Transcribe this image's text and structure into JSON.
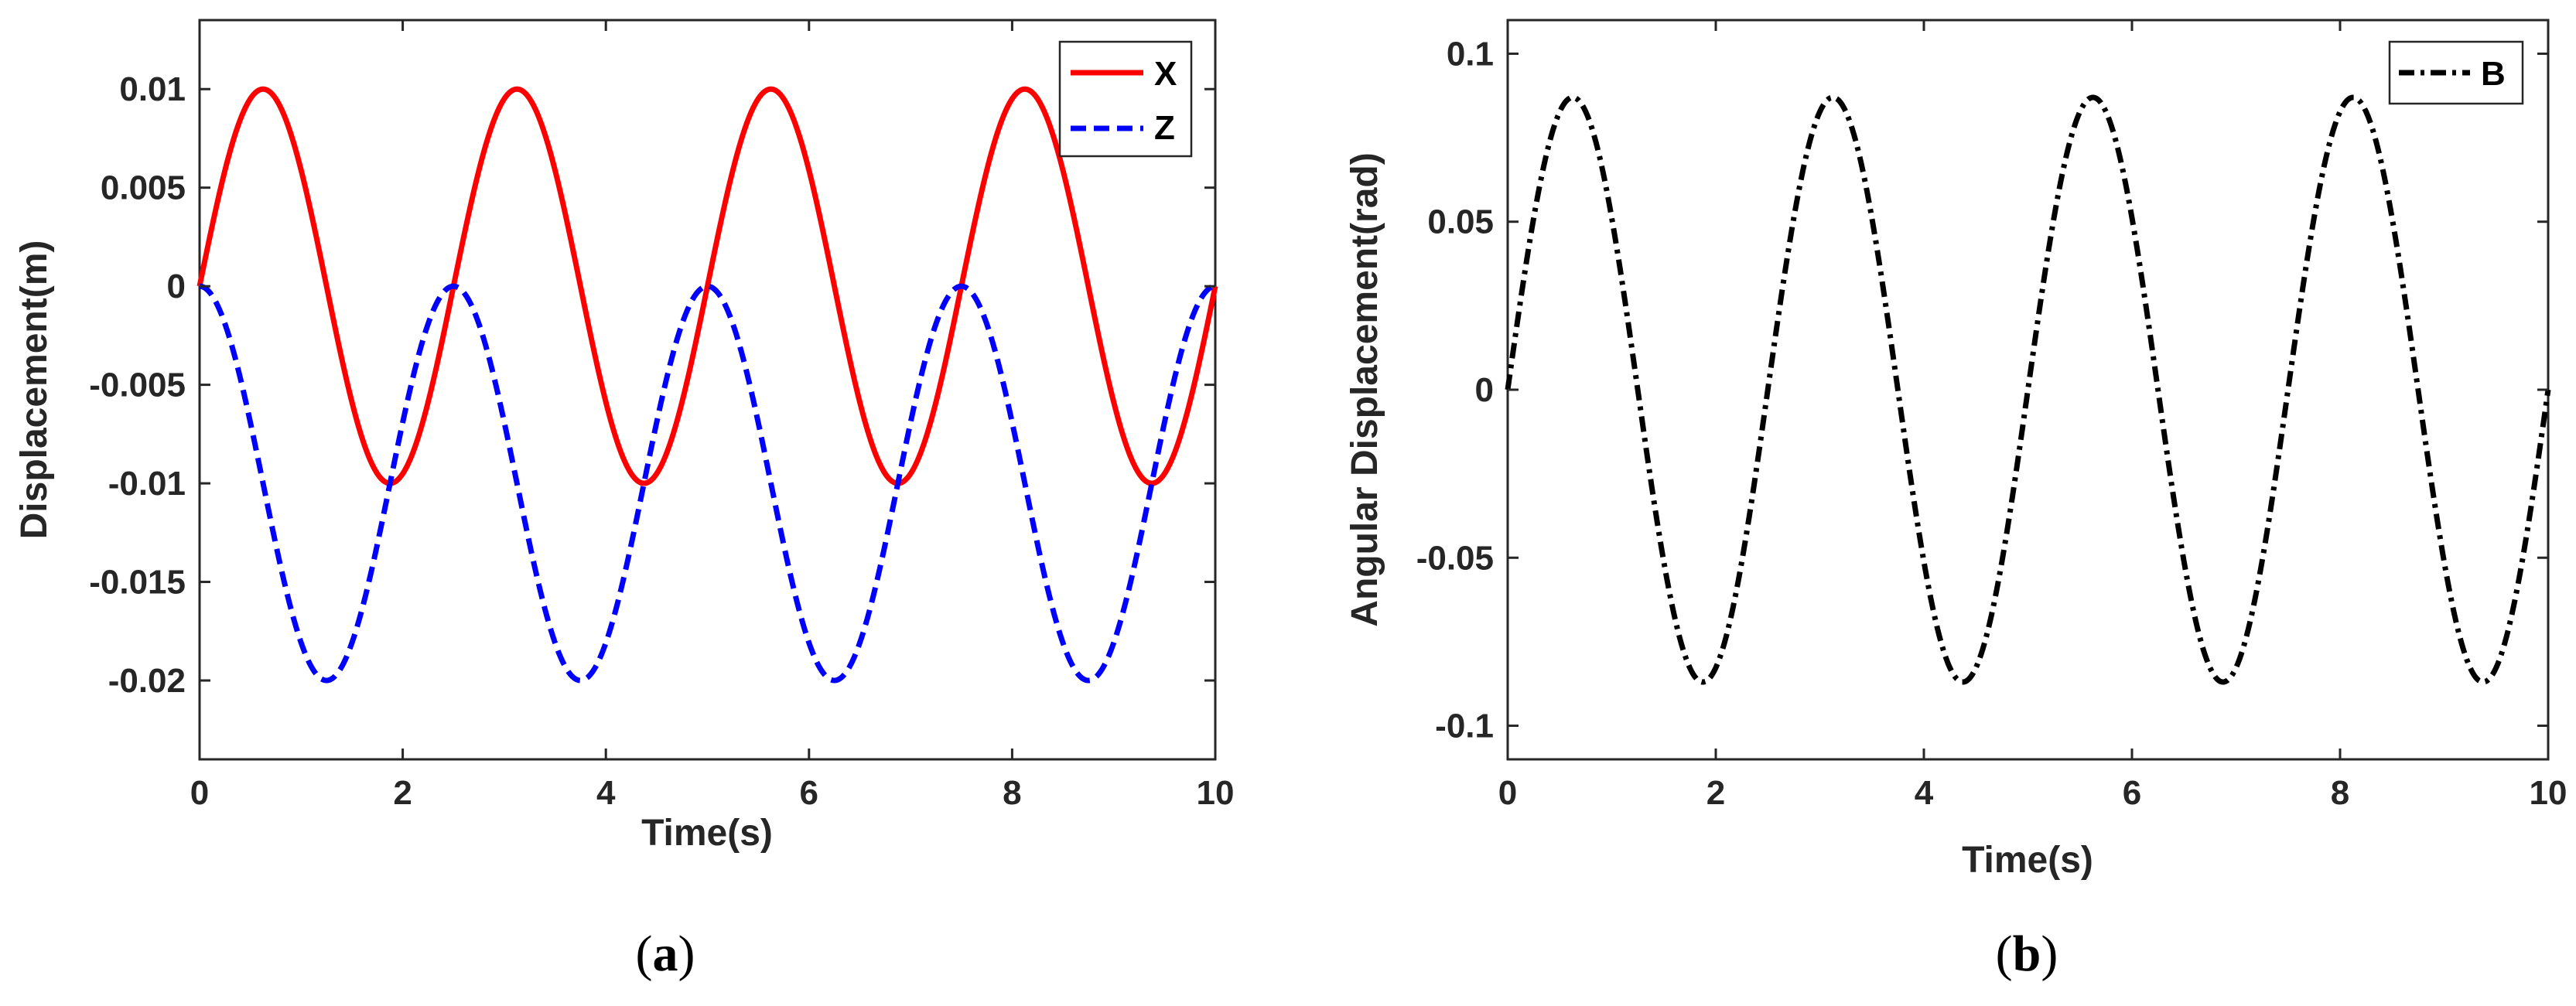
{
  "chart_data": [
    {
      "type": "line",
      "panel_label": "a",
      "xlabel": "Time(s)",
      "ylabel": "Displacement(m)",
      "xlim": [
        0,
        10
      ],
      "ylim": [
        -0.024,
        0.0135
      ],
      "xticks": [
        0,
        2,
        4,
        6,
        8,
        10
      ],
      "xtick_labels": [
        "0",
        "2",
        "4",
        "6",
        "8",
        "10"
      ],
      "yticks": [
        0.01,
        0.005,
        0,
        -0.005,
        -0.01,
        -0.015,
        -0.02
      ],
      "ytick_labels": [
        "0.01",
        "0.005",
        "0",
        "-0.005",
        "-0.01",
        "-0.015",
        "-0.02"
      ],
      "grid": false,
      "legend_position": "top-right",
      "period": 2.5,
      "series": [
        {
          "name": "X",
          "color": "#ff0000",
          "style": "solid",
          "formula": "0.01*sin(2*pi*t/2.5)",
          "x": [
            0,
            0.625,
            1.25,
            1.875,
            2.5,
            3.125,
            3.75,
            4.375,
            5.0,
            5.625,
            6.25,
            6.875,
            7.5,
            8.125,
            8.75,
            9.375,
            10
          ],
          "y": [
            0,
            0.01,
            0,
            -0.01,
            0,
            0.01,
            0,
            -0.01,
            0,
            0.01,
            0,
            -0.01,
            0,
            0.01,
            0,
            -0.01,
            0
          ]
        },
        {
          "name": "Z",
          "color": "#0000ff",
          "style": "dashed",
          "formula": "-0.01*(1-cos(2*pi*t/2.5))",
          "x": [
            0,
            0.625,
            1.25,
            1.875,
            2.5,
            3.125,
            3.75,
            4.375,
            5.0,
            5.625,
            6.25,
            6.875,
            7.5,
            8.125,
            8.75,
            9.375,
            10
          ],
          "y": [
            0,
            -0.01,
            -0.02,
            -0.01,
            0,
            -0.01,
            -0.02,
            -0.01,
            0,
            -0.01,
            -0.02,
            -0.01,
            0,
            -0.01,
            -0.02,
            -0.01,
            0
          ]
        }
      ]
    },
    {
      "type": "line",
      "panel_label": "b",
      "xlabel": "Time(s)",
      "ylabel": "Angular Displacement(rad)",
      "xlim": [
        0,
        10
      ],
      "ylim": [
        -0.11,
        0.11
      ],
      "xticks": [
        0,
        2,
        4,
        6,
        8,
        10
      ],
      "xtick_labels": [
        "0",
        "2",
        "4",
        "6",
        "8",
        "10"
      ],
      "yticks": [
        0.1,
        0.05,
        0,
        -0.05,
        -0.1
      ],
      "ytick_labels": [
        "0.1",
        "0.05",
        "0",
        "-0.05",
        "-0.1"
      ],
      "grid": false,
      "legend_position": "top-right",
      "period": 2.5,
      "series": [
        {
          "name": "B",
          "color": "#000000",
          "style": "dash-dot",
          "formula": "0.087*sin(2*pi*t/2.5)",
          "x": [
            0,
            0.625,
            1.25,
            1.875,
            2.5,
            3.125,
            3.75,
            4.375,
            5.0,
            5.625,
            6.25,
            6.875,
            7.5,
            8.125,
            8.75,
            9.375,
            10
          ],
          "y": [
            0,
            0.087,
            0,
            -0.087,
            0,
            0.087,
            0,
            -0.087,
            0,
            0.087,
            0,
            -0.087,
            0,
            0.087,
            0,
            -0.087,
            0
          ]
        }
      ]
    }
  ]
}
